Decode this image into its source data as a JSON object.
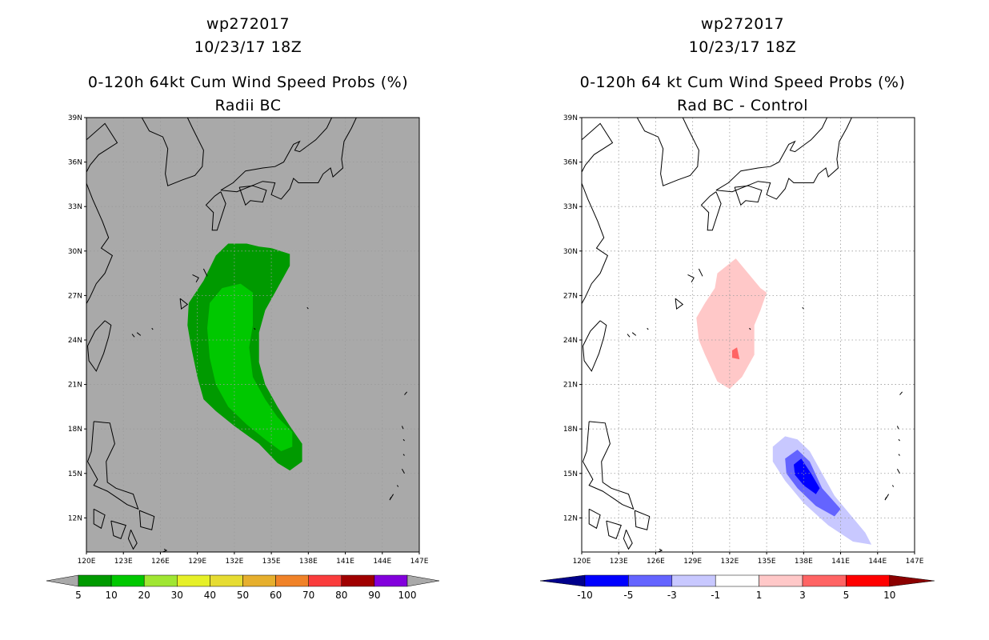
{
  "chart_data": [
    {
      "type": "heatmap",
      "title_lines": [
        "wp272017",
        "10/23/17 18Z"
      ],
      "subtitle": "0-120h 64kt Cum Wind Speed Probs (%)",
      "subtitle2": "Radii BC",
      "x_ticks": [
        "120E",
        "123E",
        "126E",
        "129E",
        "132E",
        "135E",
        "138E",
        "141E",
        "144E",
        "147E"
      ],
      "y_ticks": [
        "39N",
        "36N",
        "33N",
        "30N",
        "27N",
        "24N",
        "21N",
        "18N",
        "15N",
        "12N"
      ],
      "lon_range": [
        120,
        147
      ],
      "lat_range": [
        9.7,
        39
      ],
      "background": "#a9a9a9",
      "colorbar": {
        "labels": [
          "5",
          "10",
          "20",
          "30",
          "40",
          "50",
          "60",
          "70",
          "80",
          "90",
          "100"
        ],
        "colors": [
          "#009a00",
          "#00c800",
          "#a0e632",
          "#e6f028",
          "#e6dc32",
          "#e6af2d",
          "#f08228",
          "#fa3c3c",
          "#a00000",
          "#8200dc"
        ],
        "end_color": "#a9a9a9"
      },
      "regions": [
        {
          "level": "5-10%",
          "color": "#009a00",
          "polygon": [
            [
              128.3,
              26.5
            ],
            [
              129.5,
              28
            ],
            [
              130.5,
              29.7
            ],
            [
              131.5,
              30.5
            ],
            [
              133,
              30.5
            ],
            [
              134,
              30.3
            ],
            [
              135,
              30.2
            ],
            [
              136.5,
              29.8
            ],
            [
              136.5,
              29
            ],
            [
              135.5,
              27.5
            ],
            [
              134.5,
              26
            ],
            [
              134,
              24.5
            ],
            [
              134,
              22.5
            ],
            [
              134.5,
              21
            ],
            [
              135.5,
              19.5
            ],
            [
              136.5,
              18.2
            ],
            [
              137.5,
              17
            ],
            [
              137.5,
              15.8
            ],
            [
              136.5,
              15.2
            ],
            [
              135.5,
              15.7
            ],
            [
              134,
              17
            ],
            [
              132,
              18.2
            ],
            [
              130.5,
              19.2
            ],
            [
              129.5,
              20
            ],
            [
              129,
              21.5
            ],
            [
              128.5,
              23.5
            ],
            [
              128.2,
              25
            ]
          ]
        },
        {
          "level": "10-20%",
          "color": "#00c800",
          "polygon": [
            [
              130,
              26.5
            ],
            [
              131,
              27.5
            ],
            [
              132.5,
              27.8
            ],
            [
              133.5,
              27.2
            ],
            [
              133.5,
              25
            ],
            [
              133.2,
              23.5
            ],
            [
              133.5,
              21.5
            ],
            [
              134.5,
              20
            ],
            [
              135.5,
              18.8
            ],
            [
              136.7,
              17.8
            ],
            [
              136.7,
              16.8
            ],
            [
              135.8,
              16.5
            ],
            [
              134.5,
              17.3
            ],
            [
              133,
              18.3
            ],
            [
              131.5,
              19.5
            ],
            [
              130.5,
              21
            ],
            [
              130,
              22.8
            ],
            [
              129.8,
              24.8
            ]
          ]
        }
      ]
    },
    {
      "type": "heatmap",
      "title_lines": [
        "wp272017",
        "10/23/17 18Z"
      ],
      "subtitle": "0-120h 64 kt Cum Wind Speed Probs (%)",
      "subtitle2": "Rad BC - Control",
      "x_ticks": [
        "120E",
        "123E",
        "126E",
        "129E",
        "132E",
        "135E",
        "138E",
        "141E",
        "144E",
        "147E"
      ],
      "y_ticks": [
        "39N",
        "36N",
        "33N",
        "30N",
        "27N",
        "24N",
        "21N",
        "18N",
        "15N",
        "12N"
      ],
      "lon_range": [
        120,
        147
      ],
      "lat_range": [
        9.7,
        39
      ],
      "background": "#ffffff",
      "colorbar": {
        "labels": [
          "-10",
          "-5",
          "-3",
          "-1",
          "1",
          "3",
          "5",
          "10"
        ],
        "colors": [
          "#0000ff",
          "#6464ff",
          "#c8c8ff",
          "#ffffff",
          "#ffc8c8",
          "#ff6464",
          "#ff0000"
        ],
        "end_left_color": "#00008c",
        "end_right_color": "#8c0000"
      },
      "regions": [
        {
          "level": "+1 to +3",
          "color": "#ffc8c8",
          "polygon": [
            [
              131,
              28.5
            ],
            [
              132.5,
              29.5
            ],
            [
              133.5,
              28.5
            ],
            [
              134.5,
              27.5
            ],
            [
              135,
              27.2
            ],
            [
              134.5,
              26
            ],
            [
              134,
              25
            ],
            [
              134,
              23
            ],
            [
              133,
              21.5
            ],
            [
              132,
              20.7
            ],
            [
              131,
              21.2
            ],
            [
              130,
              23
            ],
            [
              129.5,
              24
            ],
            [
              129.3,
              25.5
            ],
            [
              130,
              26.5
            ],
            [
              130.8,
              27.5
            ]
          ]
        },
        {
          "level": "+3 to +5",
          "color": "#ff6464",
          "polygon": [
            [
              132.2,
              23.3
            ],
            [
              132.6,
              23.5
            ],
            [
              132.8,
              22.7
            ],
            [
              132.2,
              22.8
            ]
          ]
        },
        {
          "level": "-1 to -3",
          "color": "#c8c8ff",
          "polygon": [
            [
              135.5,
              16.8
            ],
            [
              136.5,
              17.5
            ],
            [
              137.5,
              17.3
            ],
            [
              138.5,
              16.5
            ],
            [
              139.5,
              15
            ],
            [
              140.5,
              13.5
            ],
            [
              142,
              12
            ],
            [
              143,
              11
            ],
            [
              143.5,
              10.2
            ],
            [
              142,
              10.4
            ],
            [
              140,
              11.5
            ],
            [
              138,
              13
            ],
            [
              136.5,
              14.5
            ],
            [
              135.5,
              15.8
            ]
          ]
        },
        {
          "level": "-3 to -5",
          "color": "#6464ff",
          "polygon": [
            [
              136.5,
              16
            ],
            [
              137.5,
              16.6
            ],
            [
              138.5,
              15.8
            ],
            [
              139.5,
              14
            ],
            [
              141,
              12.6
            ],
            [
              140.5,
              12.1
            ],
            [
              139,
              12.8
            ],
            [
              137.5,
              14
            ],
            [
              136.6,
              15
            ]
          ]
        },
        {
          "level": "-5 to -10",
          "color": "#0000ff",
          "polygon": [
            [
              137.2,
              15.6
            ],
            [
              137.8,
              16
            ],
            [
              138.6,
              15
            ],
            [
              139.3,
              14
            ],
            [
              139,
              13.6
            ],
            [
              138,
              14.2
            ],
            [
              137.3,
              14.9
            ]
          ]
        }
      ]
    }
  ]
}
